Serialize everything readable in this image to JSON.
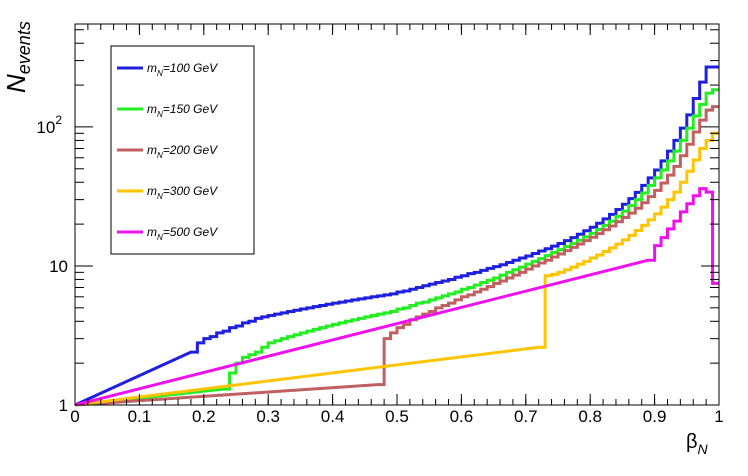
{
  "chart_data": {
    "type": "line",
    "histogram_style": "step",
    "ylabel": {
      "main": "N",
      "sub": "events"
    },
    "xlabel": {
      "main": "β",
      "sub": "N"
    },
    "xlim": [
      0,
      1
    ],
    "ylim": [
      1,
      550
    ],
    "yscale": "log",
    "grid": false,
    "legend_position": "top-left",
    "x_ticks": [
      {
        "value": 0,
        "label": "0"
      },
      {
        "value": 0.1,
        "label": "0.1"
      },
      {
        "value": 0.2,
        "label": "0.2"
      },
      {
        "value": 0.3,
        "label": "0.3"
      },
      {
        "value": 0.4,
        "label": "0.4"
      },
      {
        "value": 0.5,
        "label": "0.5"
      },
      {
        "value": 0.6,
        "label": "0.6"
      },
      {
        "value": 0.7,
        "label": "0.7"
      },
      {
        "value": 0.8,
        "label": "0.8"
      },
      {
        "value": 0.9,
        "label": "0.9"
      },
      {
        "value": 1,
        "label": "1"
      }
    ],
    "y_ticks": [
      {
        "value": 1,
        "label": "1",
        "sup": ""
      },
      {
        "value": 10,
        "label": "10",
        "sup": ""
      },
      {
        "value": 100,
        "label": "10",
        "sup": "2"
      }
    ],
    "bin_width": 0.01,
    "series": [
      {
        "name": "m_N=100 GeV",
        "label_main": "m",
        "label_sub": "N",
        "label_rest": "=100 GeV",
        "color": "#1f1fe0",
        "bins": [
          [
            0.18,
            2.4
          ],
          [
            0.19,
            2.8
          ],
          [
            0.2,
            3.0
          ],
          [
            0.21,
            3.1
          ],
          [
            0.22,
            3.3
          ],
          [
            0.23,
            3.4
          ],
          [
            0.24,
            3.6
          ],
          [
            0.25,
            3.7
          ],
          [
            0.26,
            3.9
          ],
          [
            0.27,
            4.0
          ],
          [
            0.28,
            4.2
          ],
          [
            0.29,
            4.3
          ],
          [
            0.3,
            4.4
          ],
          [
            0.31,
            4.5
          ],
          [
            0.32,
            4.6
          ],
          [
            0.33,
            4.7
          ],
          [
            0.34,
            4.8
          ],
          [
            0.35,
            4.9
          ],
          [
            0.36,
            5.0
          ],
          [
            0.37,
            5.1
          ],
          [
            0.38,
            5.2
          ],
          [
            0.39,
            5.3
          ],
          [
            0.4,
            5.4
          ],
          [
            0.41,
            5.5
          ],
          [
            0.42,
            5.6
          ],
          [
            0.43,
            5.7
          ],
          [
            0.44,
            5.8
          ],
          [
            0.45,
            5.9
          ],
          [
            0.46,
            6.0
          ],
          [
            0.47,
            6.1
          ],
          [
            0.48,
            6.2
          ],
          [
            0.49,
            6.3
          ],
          [
            0.5,
            6.5
          ],
          [
            0.51,
            6.6
          ],
          [
            0.52,
            6.8
          ],
          [
            0.53,
            7.0
          ],
          [
            0.54,
            7.2
          ],
          [
            0.55,
            7.4
          ],
          [
            0.56,
            7.6
          ],
          [
            0.57,
            7.8
          ],
          [
            0.58,
            8.0
          ],
          [
            0.59,
            8.3
          ],
          [
            0.6,
            8.5
          ],
          [
            0.61,
            8.8
          ],
          [
            0.62,
            9.0
          ],
          [
            0.63,
            9.3
          ],
          [
            0.64,
            9.6
          ],
          [
            0.65,
            9.9
          ],
          [
            0.66,
            10.2
          ],
          [
            0.67,
            10.6
          ],
          [
            0.68,
            11.0
          ],
          [
            0.69,
            11.4
          ],
          [
            0.7,
            11.8
          ],
          [
            0.71,
            12.3
          ],
          [
            0.72,
            12.8
          ],
          [
            0.73,
            13.3
          ],
          [
            0.74,
            13.9
          ],
          [
            0.75,
            14.5
          ],
          [
            0.76,
            15.2
          ],
          [
            0.77,
            16.0
          ],
          [
            0.78,
            16.9
          ],
          [
            0.79,
            17.9
          ],
          [
            0.8,
            19.0
          ],
          [
            0.81,
            20.3
          ],
          [
            0.82,
            21.8
          ],
          [
            0.83,
            23.5
          ],
          [
            0.84,
            25.5
          ],
          [
            0.85,
            27.8
          ],
          [
            0.86,
            30.5
          ],
          [
            0.87,
            33.8
          ],
          [
            0.88,
            38.0
          ],
          [
            0.89,
            43.0
          ],
          [
            0.9,
            49.0
          ],
          [
            0.91,
            57.0
          ],
          [
            0.92,
            67.0
          ],
          [
            0.93,
            80.0
          ],
          [
            0.94,
            98.0
          ],
          [
            0.95,
            122.0
          ],
          [
            0.96,
            160.0
          ],
          [
            0.97,
            210.0
          ],
          [
            0.98,
            270.0
          ],
          [
            0.99,
            270.0
          ]
        ]
      },
      {
        "name": "m_N=150 GeV",
        "label_main": "m",
        "label_sub": "N",
        "label_rest": "=150 GeV",
        "color": "#22ee22",
        "bins": [
          [
            0.23,
            1.3
          ],
          [
            0.24,
            1.7
          ],
          [
            0.25,
            2.0
          ],
          [
            0.26,
            2.2
          ],
          [
            0.27,
            2.3
          ],
          [
            0.28,
            2.4
          ],
          [
            0.29,
            2.6
          ],
          [
            0.3,
            2.8
          ],
          [
            0.31,
            2.9
          ],
          [
            0.32,
            3.0
          ],
          [
            0.33,
            3.1
          ],
          [
            0.34,
            3.2
          ],
          [
            0.35,
            3.3
          ],
          [
            0.36,
            3.4
          ],
          [
            0.37,
            3.5
          ],
          [
            0.38,
            3.6
          ],
          [
            0.39,
            3.7
          ],
          [
            0.4,
            3.8
          ],
          [
            0.41,
            3.9
          ],
          [
            0.42,
            4.0
          ],
          [
            0.43,
            4.1
          ],
          [
            0.44,
            4.2
          ],
          [
            0.45,
            4.3
          ],
          [
            0.46,
            4.4
          ],
          [
            0.47,
            4.5
          ],
          [
            0.48,
            4.6
          ],
          [
            0.49,
            4.7
          ],
          [
            0.5,
            4.9
          ],
          [
            0.51,
            5.0
          ],
          [
            0.52,
            5.2
          ],
          [
            0.53,
            5.4
          ],
          [
            0.54,
            5.5
          ],
          [
            0.55,
            5.7
          ],
          [
            0.56,
            5.9
          ],
          [
            0.57,
            6.1
          ],
          [
            0.58,
            6.3
          ],
          [
            0.59,
            6.5
          ],
          [
            0.6,
            6.8
          ],
          [
            0.61,
            7.0
          ],
          [
            0.62,
            7.3
          ],
          [
            0.63,
            7.6
          ],
          [
            0.64,
            7.9
          ],
          [
            0.65,
            8.2
          ],
          [
            0.66,
            8.6
          ],
          [
            0.67,
            9.0
          ],
          [
            0.68,
            9.4
          ],
          [
            0.69,
            9.8
          ],
          [
            0.7,
            10.3
          ],
          [
            0.71,
            10.8
          ],
          [
            0.72,
            11.3
          ],
          [
            0.73,
            11.9
          ],
          [
            0.74,
            12.5
          ],
          [
            0.75,
            13.1
          ],
          [
            0.76,
            13.8
          ],
          [
            0.77,
            14.5
          ],
          [
            0.78,
            15.3
          ],
          [
            0.79,
            16.2
          ],
          [
            0.8,
            17.2
          ],
          [
            0.81,
            18.3
          ],
          [
            0.82,
            19.6
          ],
          [
            0.83,
            21.0
          ],
          [
            0.84,
            22.8
          ],
          [
            0.85,
            24.8
          ],
          [
            0.86,
            27.2
          ],
          [
            0.87,
            30.0
          ],
          [
            0.88,
            33.5
          ],
          [
            0.89,
            38.0
          ],
          [
            0.9,
            43.0
          ],
          [
            0.91,
            49.0
          ],
          [
            0.92,
            57.0
          ],
          [
            0.93,
            67.0
          ],
          [
            0.94,
            80.0
          ],
          [
            0.95,
            98.0
          ],
          [
            0.96,
            120.0
          ],
          [
            0.97,
            145.0
          ],
          [
            0.98,
            175.0
          ],
          [
            0.99,
            185.0
          ]
        ]
      },
      {
        "name": "m_N=200 GeV",
        "label_main": "m",
        "label_sub": "N",
        "label_rest": "=200 GeV",
        "color": "#c06060",
        "bins": [
          [
            0.47,
            1.4
          ],
          [
            0.48,
            3.0
          ],
          [
            0.49,
            3.3
          ],
          [
            0.5,
            3.6
          ],
          [
            0.51,
            3.8
          ],
          [
            0.52,
            4.1
          ],
          [
            0.53,
            4.3
          ],
          [
            0.54,
            4.5
          ],
          [
            0.55,
            4.7
          ],
          [
            0.56,
            5.0
          ],
          [
            0.57,
            5.2
          ],
          [
            0.58,
            5.4
          ],
          [
            0.59,
            5.7
          ],
          [
            0.6,
            6.0
          ],
          [
            0.61,
            6.2
          ],
          [
            0.62,
            6.5
          ],
          [
            0.63,
            6.8
          ],
          [
            0.64,
            7.1
          ],
          [
            0.65,
            7.5
          ],
          [
            0.66,
            7.8
          ],
          [
            0.67,
            8.2
          ],
          [
            0.68,
            8.6
          ],
          [
            0.69,
            9.0
          ],
          [
            0.7,
            9.5
          ],
          [
            0.71,
            10.0
          ],
          [
            0.72,
            10.5
          ],
          [
            0.73,
            11.0
          ],
          [
            0.74,
            11.6
          ],
          [
            0.75,
            12.2
          ],
          [
            0.76,
            12.9
          ],
          [
            0.77,
            13.6
          ],
          [
            0.78,
            14.4
          ],
          [
            0.79,
            15.2
          ],
          [
            0.8,
            16.1
          ],
          [
            0.81,
            17.1
          ],
          [
            0.82,
            18.2
          ],
          [
            0.83,
            19.4
          ],
          [
            0.84,
            20.8
          ],
          [
            0.85,
            22.3
          ],
          [
            0.86,
            24.0
          ],
          [
            0.87,
            26.0
          ],
          [
            0.88,
            28.5
          ],
          [
            0.89,
            31.5
          ],
          [
            0.9,
            35.0
          ],
          [
            0.91,
            39.5
          ],
          [
            0.92,
            45.0
          ],
          [
            0.93,
            52.0
          ],
          [
            0.94,
            62.0
          ],
          [
            0.95,
            75.0
          ],
          [
            0.96,
            92.0
          ],
          [
            0.97,
            112.0
          ],
          [
            0.98,
            132.0
          ],
          [
            0.99,
            140.0
          ]
        ]
      },
      {
        "name": "m_N=300 GeV",
        "label_main": "m",
        "label_sub": "N",
        "label_rest": "=300 GeV",
        "color": "#ffc400",
        "bins": [
          [
            0.72,
            2.6
          ],
          [
            0.73,
            8.5
          ],
          [
            0.74,
            8.7
          ],
          [
            0.75,
            9.0
          ],
          [
            0.76,
            9.4
          ],
          [
            0.77,
            9.8
          ],
          [
            0.78,
            10.3
          ],
          [
            0.79,
            10.8
          ],
          [
            0.8,
            11.4
          ],
          [
            0.81,
            12.0
          ],
          [
            0.82,
            12.7
          ],
          [
            0.83,
            13.5
          ],
          [
            0.84,
            14.4
          ],
          [
            0.85,
            15.4
          ],
          [
            0.86,
            16.6
          ],
          [
            0.87,
            18.0
          ],
          [
            0.88,
            19.6
          ],
          [
            0.89,
            21.5
          ],
          [
            0.9,
            23.7
          ],
          [
            0.91,
            26.5
          ],
          [
            0.92,
            30.0
          ],
          [
            0.93,
            34.0
          ],
          [
            0.94,
            40.0
          ],
          [
            0.95,
            48.0
          ],
          [
            0.96,
            58.0
          ],
          [
            0.97,
            70.0
          ],
          [
            0.98,
            80.0
          ],
          [
            0.99,
            90.0
          ]
        ]
      },
      {
        "name": "m_N=500 GeV",
        "label_main": "m",
        "label_sub": "N",
        "label_rest": "=500 GeV",
        "color": "#ee11ee",
        "bins": [
          [
            0.89,
            11.0
          ],
          [
            0.9,
            14.0
          ],
          [
            0.91,
            16.0
          ],
          [
            0.92,
            18.5
          ],
          [
            0.93,
            21.0
          ],
          [
            0.94,
            24.5
          ],
          [
            0.95,
            28.0
          ],
          [
            0.96,
            32.0
          ],
          [
            0.97,
            36.0
          ],
          [
            0.98,
            34.0
          ],
          [
            0.99,
            7.5
          ]
        ]
      }
    ]
  }
}
